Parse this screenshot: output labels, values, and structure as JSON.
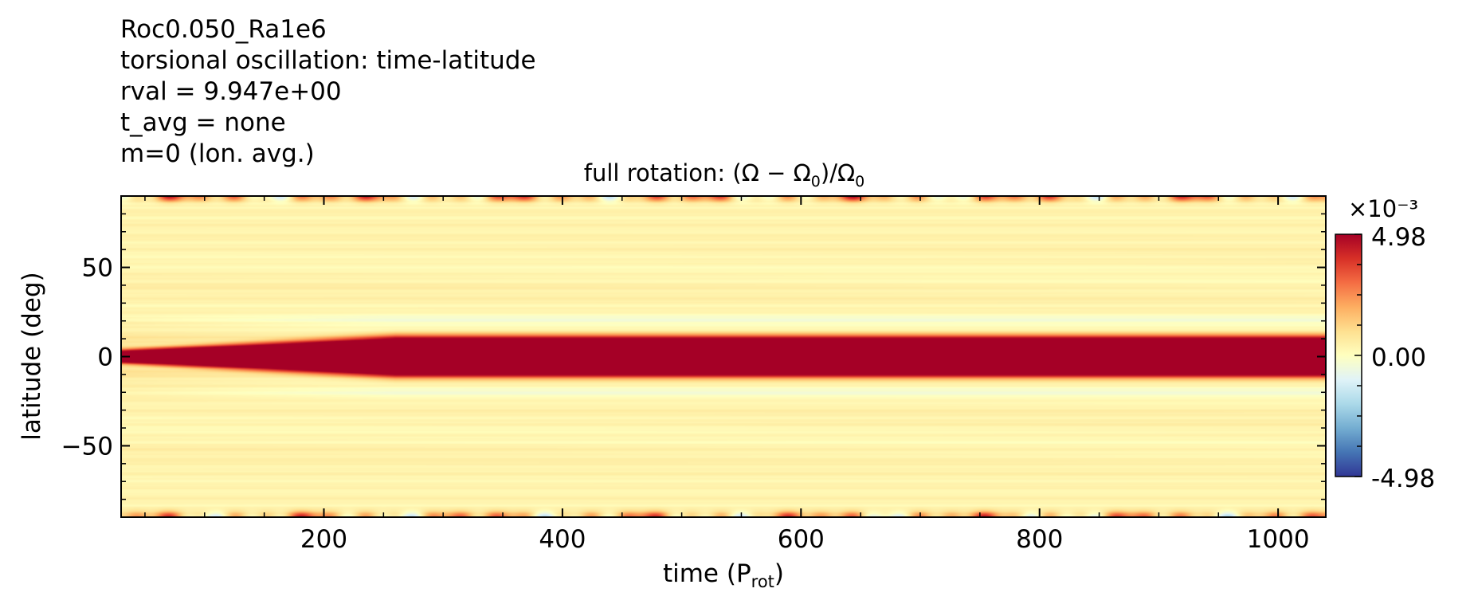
{
  "header_lines": [
    "Roc0.050_Ra1e6",
    "torsional oscillation: time-latitude",
    "rval = 9.947e+00",
    "t_avg = none",
    "m=0 (lon. avg.)"
  ],
  "chart_data": {
    "type": "heatmap",
    "title": "full rotation: (Ω − Ω₀)/Ω₀",
    "xlabel": "time (P_rot)",
    "ylabel": "latitude (deg)",
    "xlim": [
      30,
      1040
    ],
    "ylim": [
      -90,
      90
    ],
    "xticks": [
      200,
      400,
      600,
      800,
      1000
    ],
    "yticks": [
      -50,
      0,
      50
    ],
    "colorbar": {
      "min": -4.98,
      "max": 4.98,
      "tick_labels": [
        "-4.98",
        "0.00",
        "4.98"
      ],
      "multiplier": "×10⁻³",
      "colormap": "RdYlBu_r"
    },
    "features": {
      "equatorial_band": {
        "lat_center": 0,
        "value": 4.98,
        "half_width_deg": 11,
        "develops_by_time": 260
      },
      "flank_minimum": {
        "lat_abs": 20,
        "value": -0.6
      },
      "polar_fluctuations": {
        "lat_abs": 88,
        "value_range": [
          -1.5,
          3.5
        ]
      }
    }
  }
}
